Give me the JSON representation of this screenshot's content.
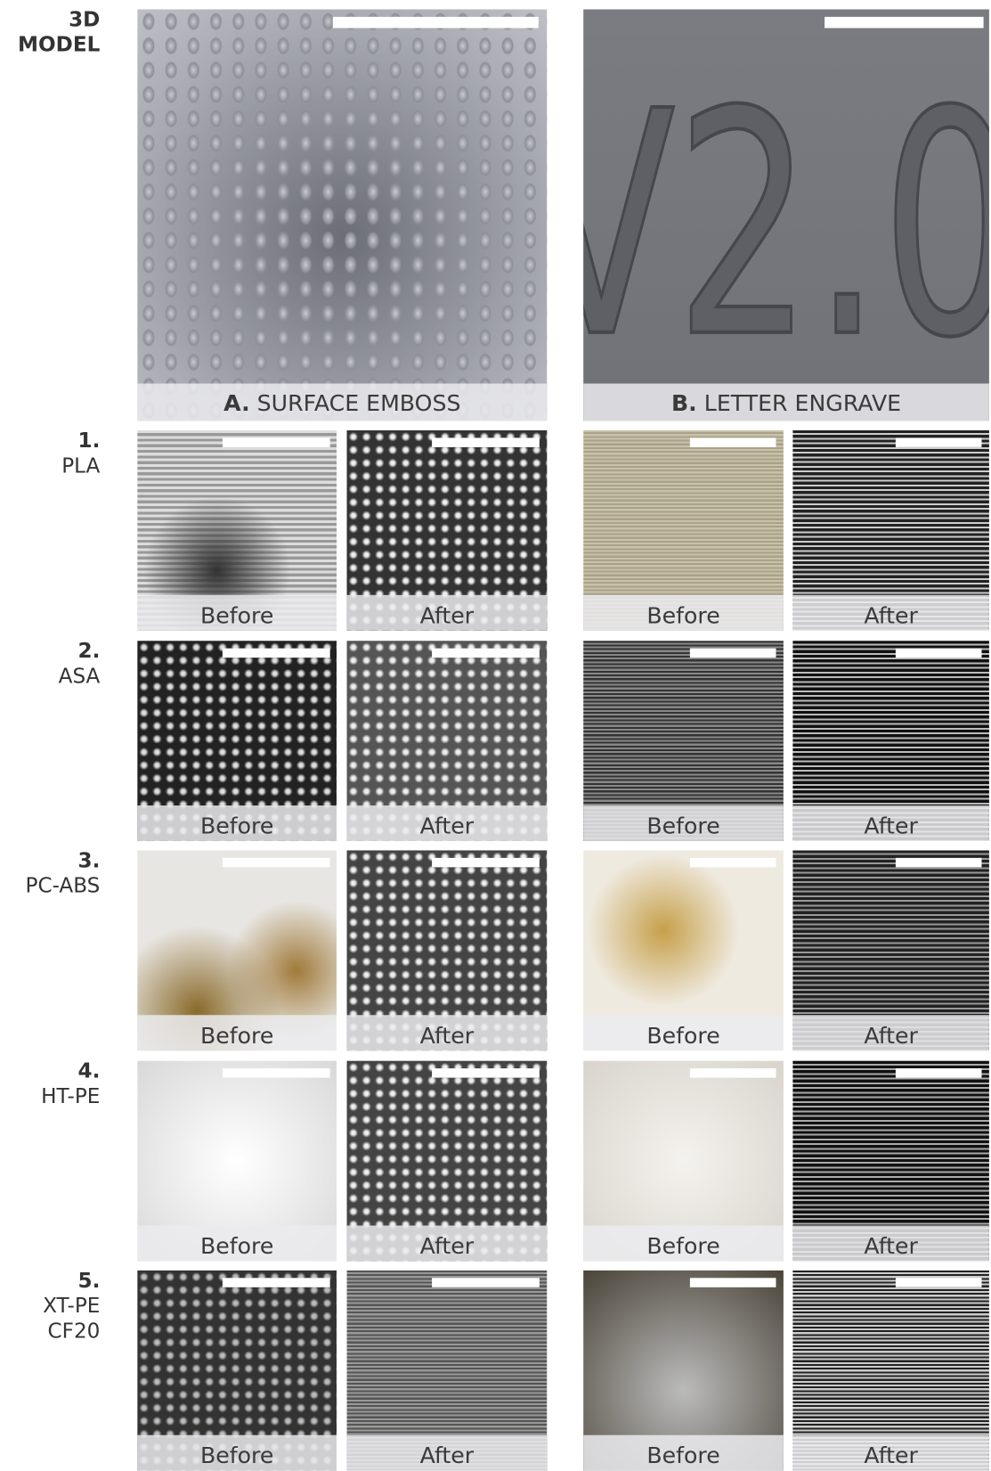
{
  "header": {
    "lines": [
      "3D",
      "MODEL"
    ]
  },
  "columns": [
    {
      "letter": "A.",
      "name": "SURFACE EMBOSS"
    },
    {
      "letter": "B.",
      "name": "LETTER ENGRAVE"
    }
  ],
  "rows": [
    {
      "number": "1.",
      "material": [
        "PLA"
      ],
      "captions": [
        "Before",
        "After",
        "Before",
        "After"
      ]
    },
    {
      "number": "2.",
      "material": [
        "ASA"
      ],
      "captions": [
        "Before",
        "After",
        "Before",
        "After"
      ]
    },
    {
      "number": "3.",
      "material": [
        "PC-ABS"
      ],
      "captions": [
        "Before",
        "After",
        "Before",
        "After"
      ]
    },
    {
      "number": "4.",
      "material": [
        "HT-PE"
      ],
      "captions": [
        "Before",
        "After",
        "Before",
        "After"
      ]
    },
    {
      "number": "5.",
      "material": [
        "XT-PE",
        "CF20"
      ],
      "captions": [
        "Before",
        "After",
        "Before",
        "After"
      ]
    }
  ]
}
